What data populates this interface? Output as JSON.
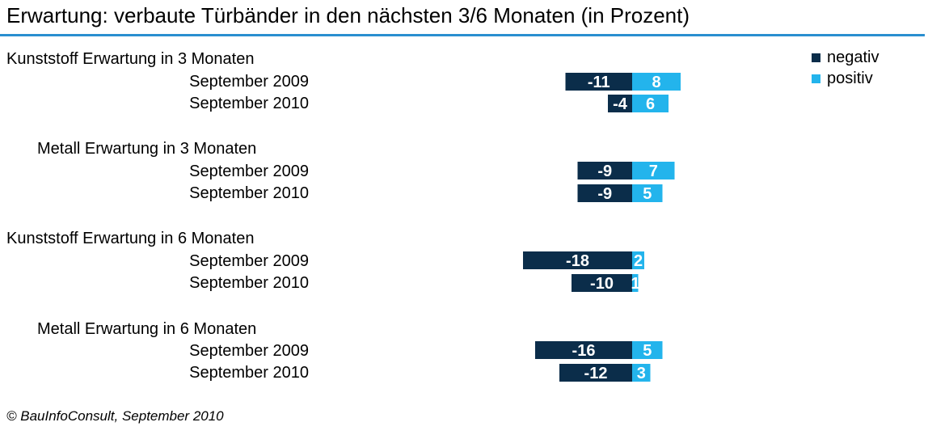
{
  "title": "Erwartung: verbaute Türbänder in den nächsten 3/6 Monaten (in Prozent)",
  "footer": "© BauInfoConsult,  September  2010",
  "colors": {
    "negativ": "#0b2d4a",
    "positiv": "#23b4ec",
    "rule": "#2a8fd0"
  },
  "chart_data": {
    "type": "bar",
    "orientation": "horizontal-diverging",
    "legend": {
      "position": "top-right",
      "entries": [
        "negativ",
        "positiv"
      ]
    },
    "series": [
      {
        "name": "negativ"
      },
      {
        "name": "positiv"
      }
    ],
    "groups": [
      {
        "label": "Kunststoff Erwartung in 3 Monaten",
        "rows": [
          {
            "label": "September 2009",
            "negativ": -11,
            "positiv": 8
          },
          {
            "label": "September 2010",
            "negativ": -4,
            "positiv": 6
          }
        ]
      },
      {
        "label": "Metall Erwartung in 3 Monaten",
        "rows": [
          {
            "label": "September 2009",
            "negativ": -9,
            "positiv": 7
          },
          {
            "label": "September 2010",
            "negativ": -9,
            "positiv": 5
          }
        ]
      },
      {
        "label": "Kunststoff Erwartung in 6 Monaten",
        "rows": [
          {
            "label": "September 2009",
            "negativ": -18,
            "positiv": 2
          },
          {
            "label": "September 2010",
            "negativ": -10,
            "positiv": 1
          }
        ]
      },
      {
        "label": "Metall Erwartung in 6 Monaten",
        "rows": [
          {
            "label": "September 2009",
            "negativ": -16,
            "positiv": 5
          },
          {
            "label": "September 2010",
            "negativ": -12,
            "positiv": 3
          }
        ]
      }
    ]
  }
}
